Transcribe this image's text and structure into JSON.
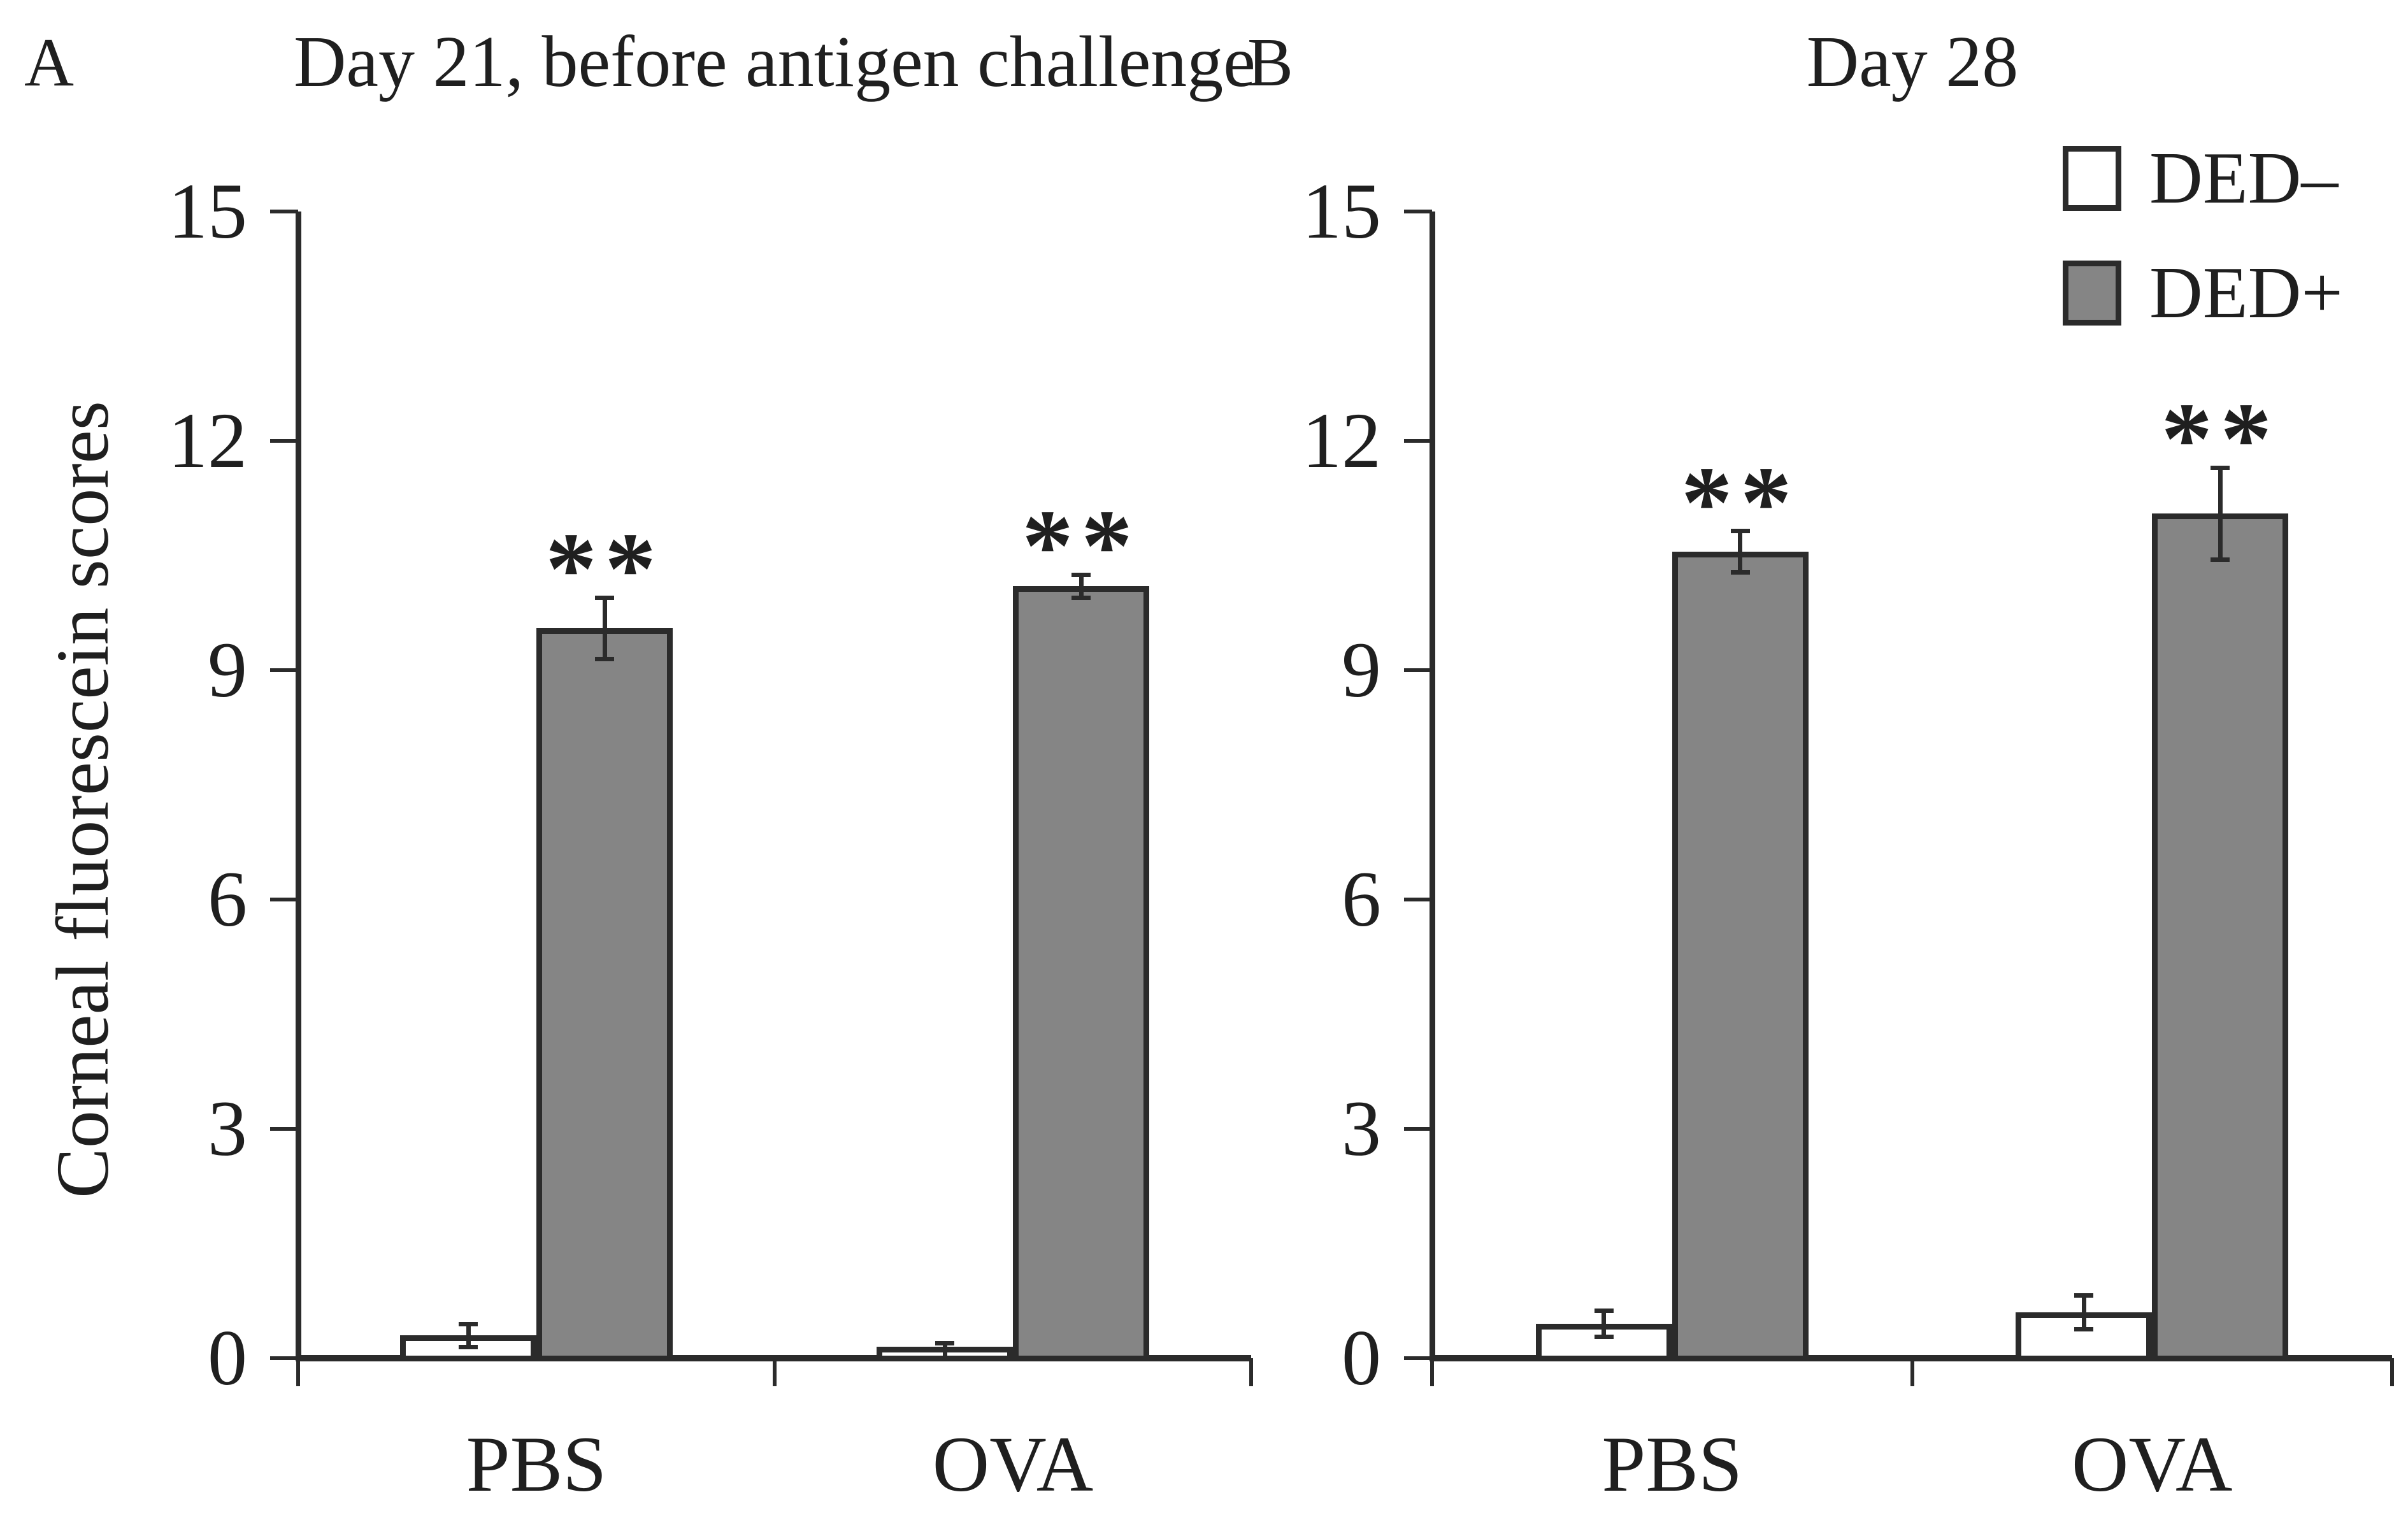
{
  "figure": {
    "panels": [
      {
        "letter": "A"
      },
      {
        "letter": "B"
      }
    ],
    "y_axis_label": "Corneal fluorescein scores"
  },
  "legend": {
    "items": [
      {
        "label": "DED–",
        "fill": "#ffffff"
      },
      {
        "label": "DED+",
        "fill": "#858585"
      }
    ]
  },
  "colors": {
    "background": "#ffffff",
    "bar_gray": "#858585",
    "bar_white": "#ffffff",
    "line": "#2b2b2b",
    "text": "#1f1f1f"
  },
  "chart_data": [
    {
      "type": "bar",
      "panel": "A",
      "title": "Day 21, before antigen challenge",
      "categories": [
        "PBS",
        "OVA"
      ],
      "series": [
        {
          "name": "DED–",
          "fill": "#ffffff",
          "values": [
            0.3,
            0.1
          ],
          "errors": [
            0.15,
            0.1
          ],
          "significance": [
            "",
            ""
          ]
        },
        {
          "name": "DED+",
          "fill": "#858585",
          "values": [
            9.55,
            10.1
          ],
          "errors": [
            0.4,
            0.15
          ],
          "significance": [
            "**",
            "**"
          ]
        }
      ],
      "ylabel": "Corneal fluorescein scores",
      "yticks": [
        0,
        3,
        6,
        9,
        12,
        15
      ],
      "ylim": [
        0,
        15
      ],
      "grid": false,
      "legend_position": "none"
    },
    {
      "type": "bar",
      "panel": "B",
      "title": "Day 28",
      "categories": [
        "PBS",
        "OVA"
      ],
      "series": [
        {
          "name": "DED–",
          "fill": "#ffffff",
          "values": [
            0.45,
            0.6
          ],
          "errors": [
            0.17,
            0.22
          ],
          "significance": [
            "",
            ""
          ]
        },
        {
          "name": "DED+",
          "fill": "#858585",
          "values": [
            10.55,
            11.05
          ],
          "errors": [
            0.27,
            0.6
          ],
          "significance": [
            "**",
            "**"
          ]
        }
      ],
      "ylabel": "Corneal fluorescein scores",
      "yticks": [
        0,
        3,
        6,
        9,
        12,
        15
      ],
      "ylim": [
        0,
        15
      ],
      "grid": false,
      "legend_position": "top-right"
    }
  ]
}
